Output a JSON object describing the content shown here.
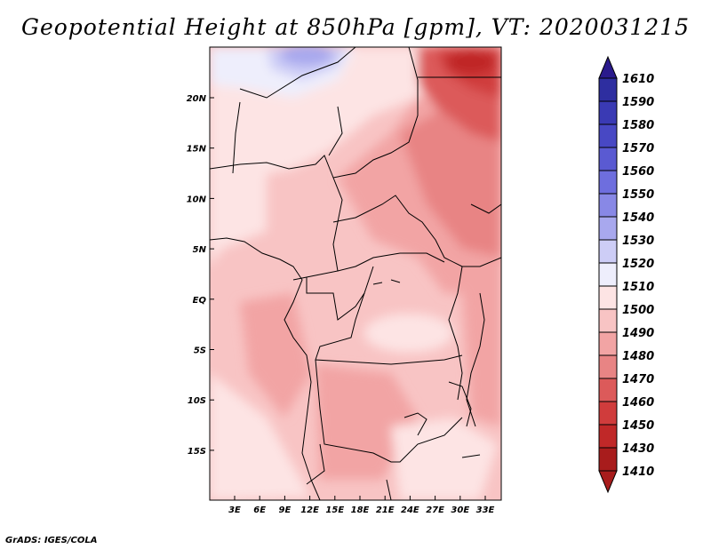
{
  "title": "Geopotential Height at 850hPa [gpm], VT: 2020031215",
  "credit": "GrADS: IGES/COLA",
  "chart_data": {
    "type": "heatmap",
    "title": "Geopotential Height at 850hPa [gpm], VT: 2020031215",
    "variable": "Geopotential Height",
    "units": "gpm",
    "level": "850hPa",
    "valid_time": "2020031215",
    "x_ticks": [
      "3E",
      "6E",
      "9E",
      "12E",
      "15E",
      "18E",
      "21E",
      "24E",
      "27E",
      "30E",
      "33E"
    ],
    "y_ticks": [
      "20N",
      "15N",
      "10N",
      "5N",
      "EQ",
      "5S",
      "10S",
      "15S"
    ],
    "colorbar": {
      "levels": [
        "1610",
        "1590",
        "1580",
        "1570",
        "1560",
        "1550",
        "1540",
        "1530",
        "1520",
        "1510",
        "1500",
        "1490",
        "1480",
        "1470",
        "1460",
        "1450",
        "1430",
        "1410"
      ],
      "colors": [
        "#2a1a8c",
        "#2e2ea0",
        "#3a3ab4",
        "#4848c4",
        "#5a5ad2",
        "#6e6ede",
        "#8888e6",
        "#a8a8ee",
        "#cdcdf6",
        "#eeeefc",
        "#fde4e4",
        "#f8c4c4",
        "#f2a4a4",
        "#e88484",
        "#dc5a5a",
        "#d03c3c",
        "#c02828",
        "#a81c1c"
      ]
    },
    "fields": {
      "high_north": "1520",
      "tropics_typical": "1490",
      "northeast_low": "1450",
      "southwest": "1500",
      "east_africa": "1480"
    }
  }
}
